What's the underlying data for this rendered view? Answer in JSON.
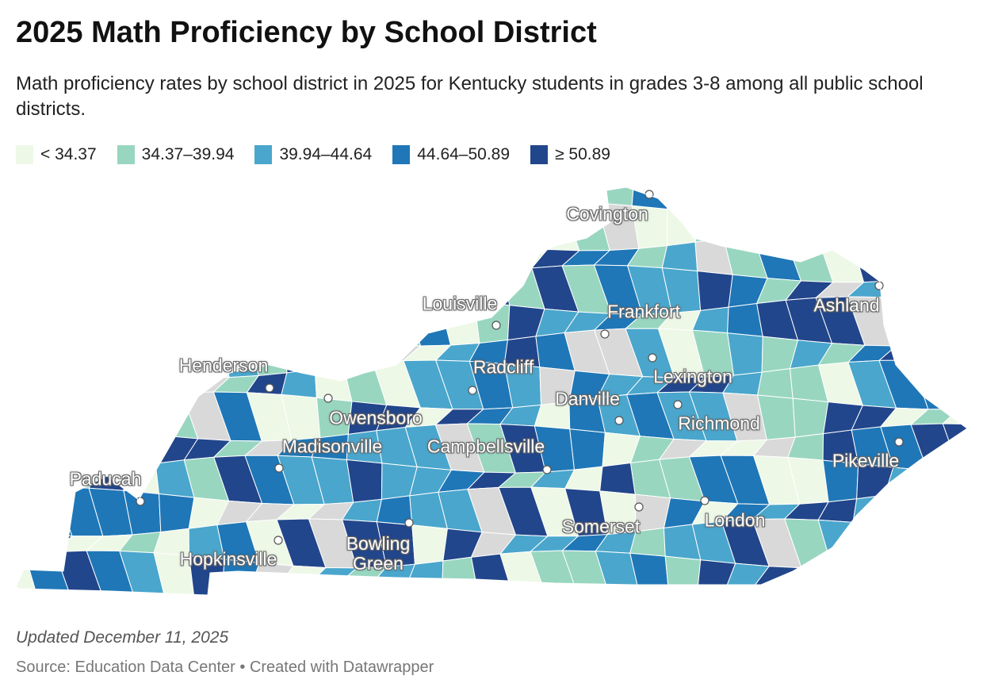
{
  "title": "2025 Math Proficiency by School District",
  "subtitle": "Math proficiency rates by school district in 2025 for Kentucky students in grades 3-8 among all public school districts.",
  "legend": [
    {
      "label": "< 34.37",
      "color": "#edf8e6"
    },
    {
      "label": "34.37–39.94",
      "color": "#98d6c0"
    },
    {
      "label": "39.94–44.64",
      "color": "#4aa6cc"
    },
    {
      "label": "44.64–50.89",
      "color": "#1f77b7"
    },
    {
      "label": "≥ 50.89",
      "color": "#22468b"
    }
  ],
  "no_data_color": "#d9d9d9",
  "cities": [
    "Covington",
    "Louisville",
    "Frankfort",
    "Ashland",
    "Henderson",
    "Radcliff",
    "Lexington",
    "Danville",
    "Owensboro",
    "Richmond",
    "Madisonville",
    "Campbellsville",
    "Pikeville",
    "Paducah",
    "London",
    "Somerset",
    "Bowling Green",
    "Hopkinsville"
  ],
  "updated": "Updated December 11, 2025",
  "source": "Source: Education Data Center • Created with Datawrapper"
}
